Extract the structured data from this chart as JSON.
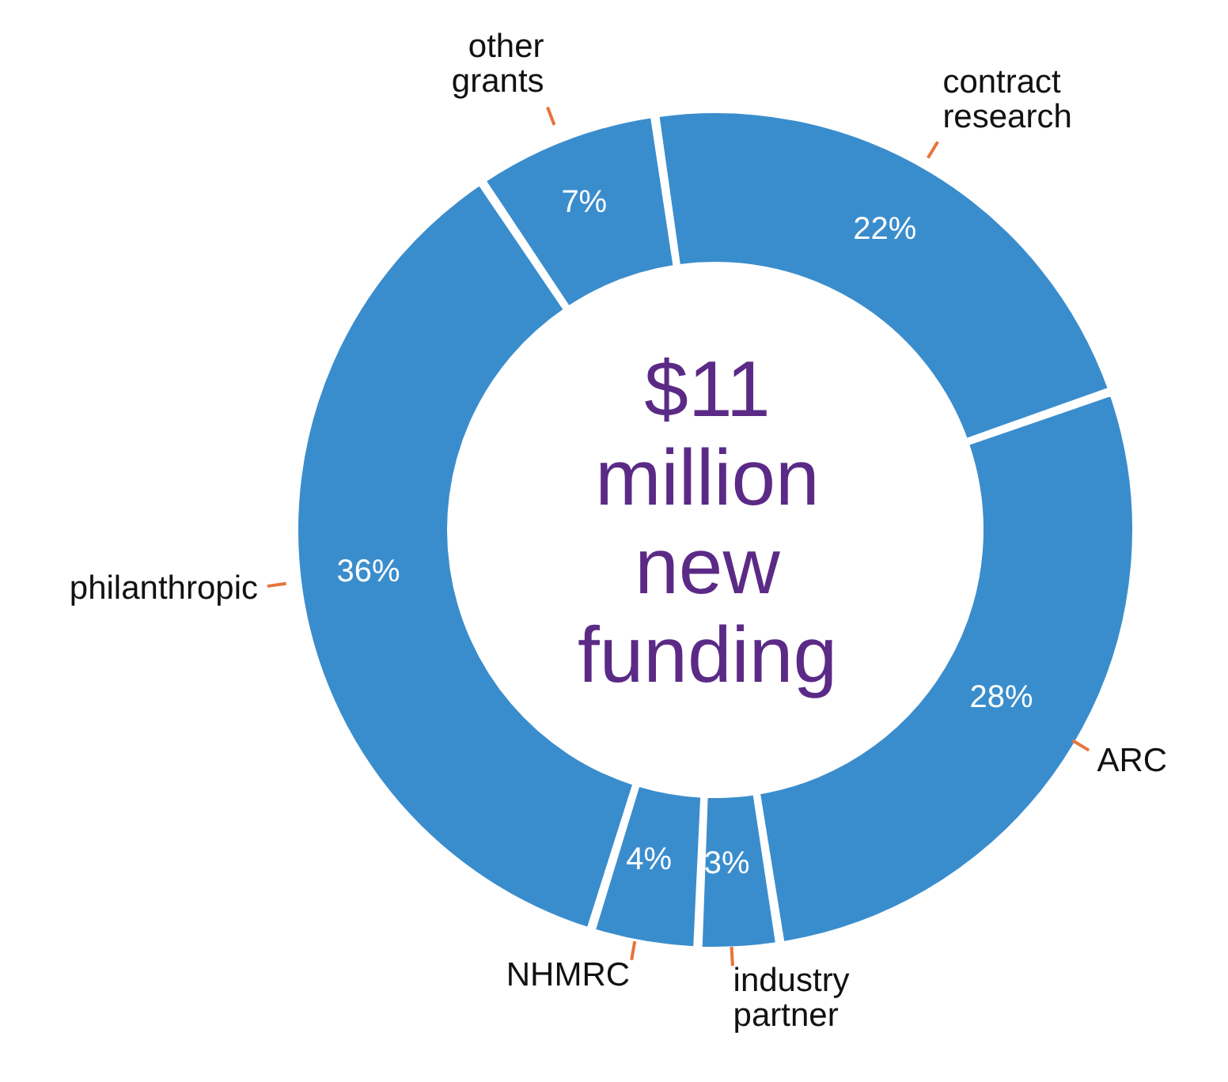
{
  "chart_data": {
    "type": "donut",
    "title": "$11 million new funding",
    "categories": [
      "contract research",
      "ARC",
      "industry partner",
      "NHMRC",
      "philanthropic",
      "other grants"
    ],
    "values": [
      22,
      28,
      3,
      4,
      36,
      7
    ],
    "value_labels": [
      "22%",
      "28%",
      "3%",
      "4%",
      "36%",
      "7%"
    ],
    "colors": [
      "#3a8dcd",
      "#3a8dcd",
      "#3a8dcd",
      "#3a8dcd",
      "#3a8dcd",
      "#3a8dcd"
    ]
  }
}
